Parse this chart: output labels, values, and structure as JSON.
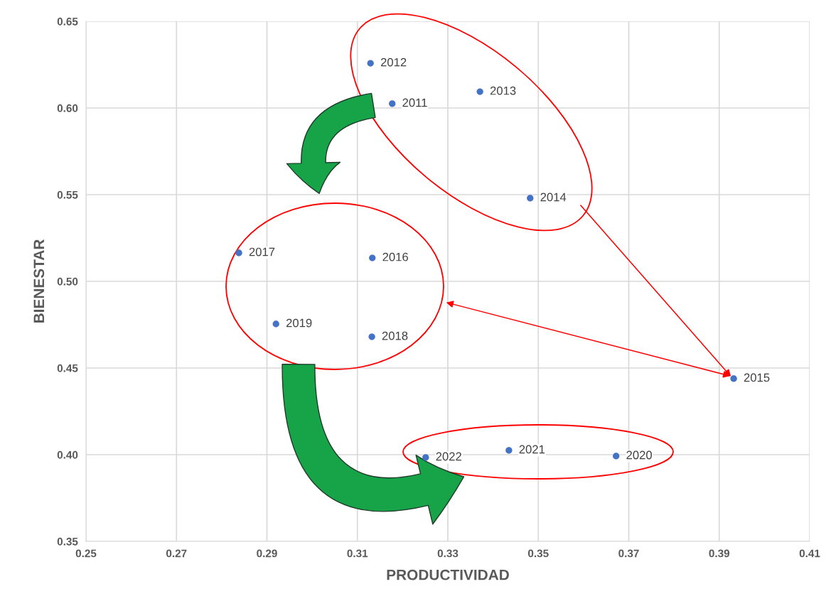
{
  "chart_data": {
    "type": "scatter",
    "xlabel": "PRODUCTIVIDAD",
    "ylabel": "BIENESTAR",
    "x": [
      0.3177,
      0.3129,
      0.3371,
      0.3482,
      0.3932,
      0.3133,
      0.2838,
      0.3132,
      0.292,
      0.3672,
      0.3435,
      0.3251
    ],
    "series": [
      {
        "color": "#4472c4",
        "values": [
          0.6025,
          0.6258,
          0.6094,
          0.548,
          0.4439,
          0.5135,
          0.5164,
          0.468,
          0.4754,
          0.3992,
          0.4025,
          0.3984
        ]
      }
    ],
    "annotations": [
      {
        "text": "2011",
        "x": 0.3177,
        "y": 0.6025
      },
      {
        "text": "2012",
        "x": 0.3129,
        "y": 0.6258
      },
      {
        "text": "2013",
        "x": 0.3371,
        "y": 0.6094
      },
      {
        "text": "2014",
        "x": 0.3482,
        "y": 0.548
      },
      {
        "text": "2015",
        "x": 0.3932,
        "y": 0.4439
      },
      {
        "text": "2016",
        "x": 0.3133,
        "y": 0.5135
      },
      {
        "text": "2017",
        "x": 0.2838,
        "y": 0.5164
      },
      {
        "text": "2018",
        "x": 0.3132,
        "y": 0.468
      },
      {
        "text": "2019",
        "x": 0.292,
        "y": 0.4754
      },
      {
        "text": "2020",
        "x": 0.3672,
        "y": 0.3992
      },
      {
        "text": "2021",
        "x": 0.3435,
        "y": 0.4025
      },
      {
        "text": "2022",
        "x": 0.3251,
        "y": 0.3984
      }
    ],
    "xlim": [
      0.25,
      0.41
    ],
    "xticks": [
      {
        "value": 0.25,
        "label": "0.25"
      },
      {
        "value": 0.27,
        "label": "0.27"
      },
      {
        "value": 0.29,
        "label": "0.29"
      },
      {
        "value": 0.31,
        "label": "0.31"
      },
      {
        "value": 0.33,
        "label": "0.33"
      },
      {
        "value": 0.35,
        "label": "0.35"
      },
      {
        "value": 0.37,
        "label": "0.37"
      },
      {
        "value": 0.39,
        "label": "0.39"
      },
      {
        "value": 0.41,
        "label": "0.41"
      }
    ],
    "ylim": [
      0.35,
      0.65
    ],
    "yticks": [
      {
        "value": 0.35,
        "label": "0.35"
      },
      {
        "value": 0.4,
        "label": "0.40"
      },
      {
        "value": 0.45,
        "label": "0.45"
      },
      {
        "value": 0.5,
        "label": "0.50"
      },
      {
        "value": 0.55,
        "label": "0.55"
      },
      {
        "value": 0.6,
        "label": "0.60"
      },
      {
        "value": 0.65,
        "label": "0.65"
      }
    ],
    "grid": true,
    "marker": "circle"
  }
}
